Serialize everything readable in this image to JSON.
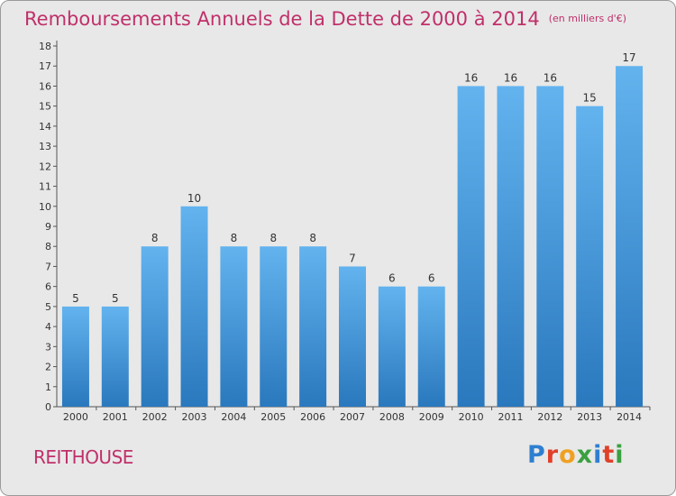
{
  "header": {
    "title": "Remboursements Annuels de la Dette de 2000 à 2014",
    "unit": "(en milliers d'€)"
  },
  "footer": {
    "commune": "REITHOUSE",
    "logo_text": "Proxiti"
  },
  "colors": {
    "title": "#c0306a",
    "bar_top": "#63b3ef",
    "bar_bottom": "#2a78bd",
    "plot_bg": "#e8e8e8"
  },
  "chart_data": {
    "type": "bar",
    "title": "Remboursements Annuels de la Dette de 2000 à 2014",
    "categories": [
      "2000",
      "2001",
      "2002",
      "2003",
      "2004",
      "2005",
      "2006",
      "2007",
      "2008",
      "2009",
      "2010",
      "2011",
      "2012",
      "2013",
      "2014"
    ],
    "values": [
      5,
      5,
      8,
      10,
      8,
      8,
      8,
      7,
      6,
      6,
      16,
      16,
      16,
      15,
      17
    ],
    "ylim": [
      0,
      18
    ],
    "yticks": [
      "0",
      "1",
      "2",
      "3",
      "4",
      "5",
      "6",
      "7",
      "8",
      "9",
      "10",
      "11",
      "12",
      "13",
      "14",
      "15",
      "16",
      "17",
      "18"
    ],
    "grid": false,
    "data_labels": true
  }
}
